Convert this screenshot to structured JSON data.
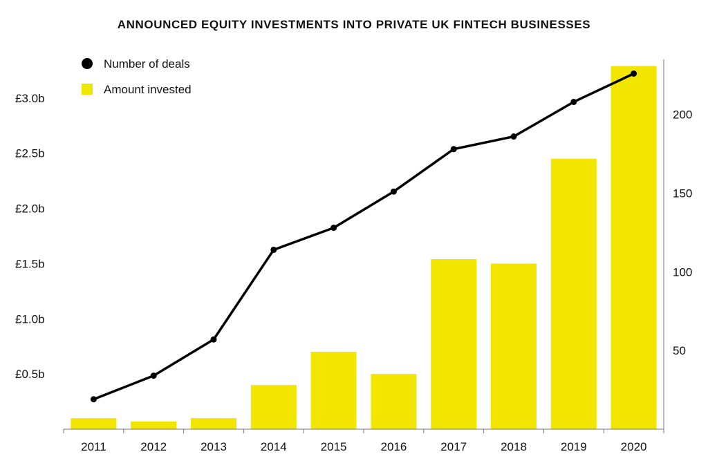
{
  "chart_data": {
    "type": "bar",
    "title": "ANNOUNCED EQUITY INVESTMENTS INTO PRIVATE UK FINTECH BUSINESSES",
    "categories": [
      "2011",
      "2012",
      "2013",
      "2014",
      "2015",
      "2016",
      "2017",
      "2018",
      "2019",
      "2020"
    ],
    "series": [
      {
        "name": "Amount invested",
        "kind": "bar",
        "axis": "left",
        "color": "#f2e500",
        "values": [
          0.1,
          0.07,
          0.1,
          0.4,
          0.7,
          0.5,
          1.54,
          1.5,
          2.45,
          3.29
        ]
      },
      {
        "name": "Number of deals",
        "kind": "line",
        "axis": "right",
        "color": "#000000",
        "values": [
          19,
          34,
          57,
          114,
          128,
          151,
          178,
          186,
          208,
          226
        ]
      }
    ],
    "y_left": {
      "ticks": [
        "£0.5b",
        "£1.0b",
        "£1.5b",
        "£2.0b",
        "£2.5b",
        "£3.0b"
      ],
      "tick_values": [
        0.5,
        1.0,
        1.5,
        2.0,
        2.5,
        3.0
      ],
      "ylim": [
        0,
        3.35
      ]
    },
    "y_right": {
      "ticks": [
        "50",
        "100",
        "150",
        "200"
      ],
      "tick_values": [
        50,
        100,
        150,
        200
      ],
      "ylim": [
        0,
        235
      ]
    },
    "legend": {
      "placement": "top-left",
      "items": [
        "Number of deals",
        "Amount invested"
      ]
    },
    "grid": false
  }
}
